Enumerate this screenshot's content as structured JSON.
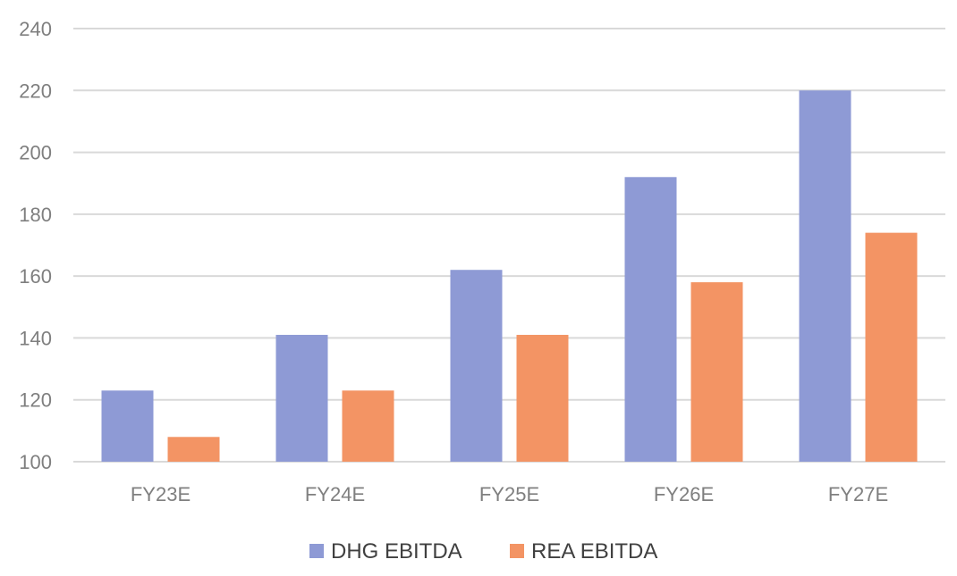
{
  "chart_data": {
    "type": "bar",
    "categories": [
      "FY23E",
      "FY24E",
      "FY25E",
      "FY26E",
      "FY27E"
    ],
    "series": [
      {
        "name": "DHG EBITDA",
        "values": [
          123,
          141,
          162,
          192,
          220
        ],
        "color": "#8e9ad5"
      },
      {
        "name": "REA EBITDA",
        "values": [
          108,
          123,
          141,
          158,
          174
        ],
        "color": "#f39464"
      }
    ],
    "ylim": [
      100,
      240
    ],
    "yticks": [
      100,
      120,
      140,
      160,
      180,
      200,
      220,
      240
    ],
    "grid": true,
    "legend_position": "bottom",
    "gridline_color": "#d9d9d9",
    "tick_color": "#7f7f7f"
  }
}
